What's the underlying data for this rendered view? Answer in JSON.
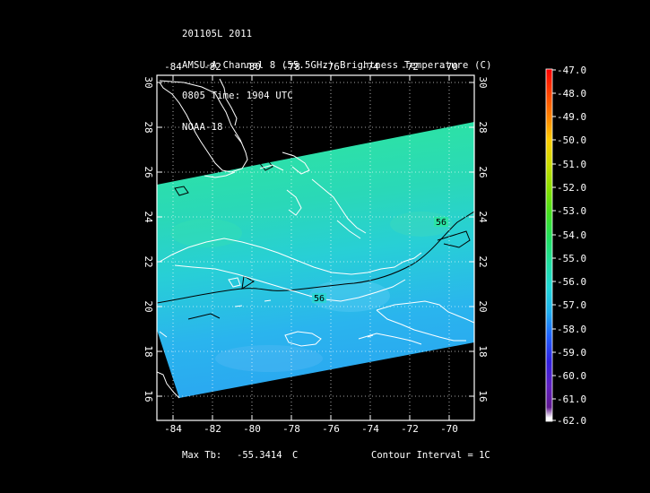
{
  "header": {
    "line1": "201105L 2011",
    "line2": "AMSU-A Channel 8 (55.5GHz) Brightness Temperature (C)",
    "line3": "0805 Time: 1904 UTC",
    "line4": "NOAA-18"
  },
  "map": {
    "lon_ticks": [
      "-84",
      "-82",
      "-80",
      "-78",
      "-76",
      "-74",
      "-72",
      "-70"
    ],
    "lat_ticks": [
      "30",
      "28",
      "26",
      "24",
      "22",
      "20",
      "18",
      "16"
    ],
    "contour_labels": [
      "56",
      "56"
    ],
    "lon_range": [
      -85,
      -69
    ],
    "lat_range": [
      14.5,
      30.5
    ],
    "grid": true,
    "colors": {
      "frame": "#ffffff",
      "coastline": "#ffffff",
      "contour": "#000000",
      "swath_north": "#2ee69a",
      "swath_mid": "#28d6d6",
      "swath_south": "#2aa8f0",
      "no_data": "#000000"
    }
  },
  "colorbar": {
    "labels": [
      "-47.0",
      "-48.0",
      "-49.0",
      "-50.0",
      "-51.0",
      "-52.0",
      "-53.0",
      "-54.0",
      "-55.0",
      "-56.0",
      "-57.0",
      "-58.0",
      "-59.0",
      "-60.0",
      "-61.0",
      "-62.0"
    ],
    "range": [
      -62.0,
      -47.0
    ],
    "colors": [
      "#ff0000",
      "#ff4400",
      "#ff8800",
      "#ffcc00",
      "#ccdd00",
      "#88e000",
      "#44e020",
      "#20e060",
      "#20e0a0",
      "#20d8d8",
      "#20b0f0",
      "#2060ff",
      "#3020e0",
      "#6020c0",
      "#601890",
      "#ffffff"
    ]
  },
  "footer": {
    "max_tb_label": "Max Tb:",
    "max_tb_value": "-55.3414",
    "max_tb_unit": "C",
    "contour_interval": "Contour Interval = 1C"
  }
}
